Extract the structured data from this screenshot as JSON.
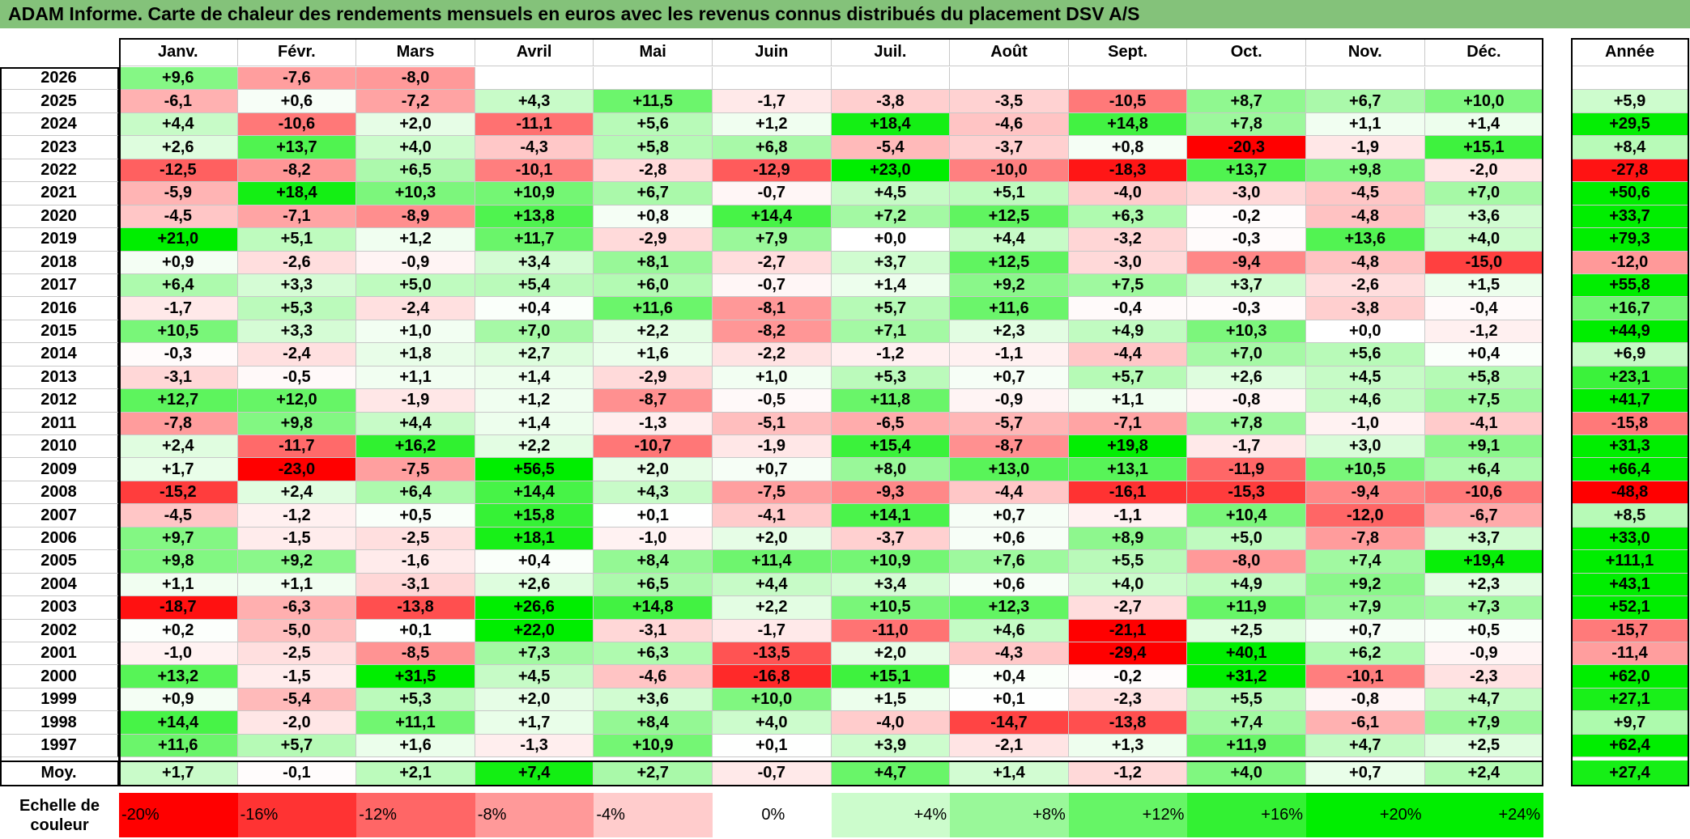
{
  "title": "ADAM Informe. Carte de chaleur des rendements mensuels en euros avec les revenus connus distribués du placement DSV A/S",
  "chart_data": {
    "type": "heatmap",
    "title": "ADAM Informe. Carte de chaleur des rendements mensuels en euros avec les revenus connus distribués du placement DSV A/S",
    "columns": [
      "Janv.",
      "Févr.",
      "Mars",
      "Avril",
      "Mai",
      "Juin",
      "Juil.",
      "Août",
      "Sept.",
      "Oct.",
      "Nov.",
      "Déc."
    ],
    "annual_header": "Année",
    "rows": [
      {
        "year": "2026",
        "values": [
          "+9,6",
          "-7,6",
          "-8,0",
          "",
          "",
          "",
          "",
          "",
          "",
          "",
          "",
          ""
        ],
        "annual": ""
      },
      {
        "year": "2025",
        "values": [
          "-6,1",
          "+0,6",
          "-7,2",
          "+4,3",
          "+11,5",
          "-1,7",
          "-3,8",
          "-3,5",
          "-10,5",
          "+8,7",
          "+6,7",
          "+10,0"
        ],
        "annual": "+5,9"
      },
      {
        "year": "2024",
        "values": [
          "+4,4",
          "-10,6",
          "+2,0",
          "-11,1",
          "+5,6",
          "+1,2",
          "+18,4",
          "-4,6",
          "+14,8",
          "+7,8",
          "+1,1",
          "+1,4"
        ],
        "annual": "+29,5"
      },
      {
        "year": "2023",
        "values": [
          "+2,6",
          "+13,7",
          "+4,0",
          "-4,3",
          "+5,8",
          "+6,8",
          "-5,4",
          "-3,7",
          "+0,8",
          "-20,3",
          "-1,9",
          "+15,1"
        ],
        "annual": "+8,4"
      },
      {
        "year": "2022",
        "values": [
          "-12,5",
          "-8,2",
          "+6,5",
          "-10,1",
          "-2,8",
          "-12,9",
          "+23,0",
          "-10,0",
          "-18,3",
          "+13,7",
          "+9,8",
          "-2,0"
        ],
        "annual": "-27,8"
      },
      {
        "year": "2021",
        "values": [
          "-5,9",
          "+18,4",
          "+10,3",
          "+10,9",
          "+6,7",
          "-0,7",
          "+4,5",
          "+5,1",
          "-4,0",
          "-3,0",
          "-4,5",
          "+7,0"
        ],
        "annual": "+50,6"
      },
      {
        "year": "2020",
        "values": [
          "-4,5",
          "-7,1",
          "-8,9",
          "+13,8",
          "+0,8",
          "+14,4",
          "+7,2",
          "+12,5",
          "+6,3",
          "-0,2",
          "-4,8",
          "+3,6"
        ],
        "annual": "+33,7"
      },
      {
        "year": "2019",
        "values": [
          "+21,0",
          "+5,1",
          "+1,2",
          "+11,7",
          "-2,9",
          "+7,9",
          "+0,0",
          "+4,4",
          "-3,2",
          "-0,3",
          "+13,6",
          "+4,0"
        ],
        "annual": "+79,3"
      },
      {
        "year": "2018",
        "values": [
          "+0,9",
          "-2,6",
          "-0,9",
          "+3,4",
          "+8,1",
          "-2,7",
          "+3,7",
          "+12,5",
          "-3,0",
          "-9,4",
          "-4,8",
          "-15,0"
        ],
        "annual": "-12,0"
      },
      {
        "year": "2017",
        "values": [
          "+6,4",
          "+3,3",
          "+5,0",
          "+5,4",
          "+6,0",
          "-0,7",
          "+1,4",
          "+9,2",
          "+7,5",
          "+3,7",
          "-2,6",
          "+1,5"
        ],
        "annual": "+55,8"
      },
      {
        "year": "2016",
        "values": [
          "-1,7",
          "+5,3",
          "-2,4",
          "+0,4",
          "+11,6",
          "-8,1",
          "+5,7",
          "+11,6",
          "-0,4",
          "-0,3",
          "-3,8",
          "-0,4"
        ],
        "annual": "+16,7"
      },
      {
        "year": "2015",
        "values": [
          "+10,5",
          "+3,3",
          "+1,0",
          "+7,0",
          "+2,2",
          "-8,2",
          "+7,1",
          "+2,3",
          "+4,9",
          "+10,3",
          "+0,0",
          "-1,2"
        ],
        "annual": "+44,9"
      },
      {
        "year": "2014",
        "values": [
          "-0,3",
          "-2,4",
          "+1,8",
          "+2,7",
          "+1,6",
          "-2,2",
          "-1,2",
          "-1,1",
          "-4,4",
          "+7,0",
          "+5,6",
          "+0,4"
        ],
        "annual": "+6,9"
      },
      {
        "year": "2013",
        "values": [
          "-3,1",
          "-0,5",
          "+1,1",
          "+1,4",
          "-2,9",
          "+1,0",
          "+5,3",
          "+0,7",
          "+5,7",
          "+2,6",
          "+4,5",
          "+5,8"
        ],
        "annual": "+23,1"
      },
      {
        "year": "2012",
        "values": [
          "+12,7",
          "+12,0",
          "-1,9",
          "+1,2",
          "-8,7",
          "-0,5",
          "+11,8",
          "-0,9",
          "+1,1",
          "-0,8",
          "+4,6",
          "+7,5"
        ],
        "annual": "+41,7"
      },
      {
        "year": "2011",
        "values": [
          "-7,8",
          "+9,8",
          "+4,4",
          "+1,4",
          "-1,3",
          "-5,1",
          "-6,5",
          "-5,7",
          "-7,1",
          "+7,8",
          "-1,0",
          "-4,1"
        ],
        "annual": "-15,8"
      },
      {
        "year": "2010",
        "values": [
          "+2,4",
          "-11,7",
          "+16,2",
          "+2,2",
          "-10,7",
          "-1,9",
          "+15,4",
          "-8,7",
          "+19,8",
          "-1,7",
          "+3,0",
          "+9,1"
        ],
        "annual": "+31,3"
      },
      {
        "year": "2009",
        "values": [
          "+1,7",
          "-23,0",
          "-7,5",
          "+56,5",
          "+2,0",
          "+0,7",
          "+8,0",
          "+13,0",
          "+13,1",
          "-11,9",
          "+10,5",
          "+6,4"
        ],
        "annual": "+66,4"
      },
      {
        "year": "2008",
        "values": [
          "-15,2",
          "+2,4",
          "+6,4",
          "+14,4",
          "+4,3",
          "-7,5",
          "-9,3",
          "-4,4",
          "-16,1",
          "-15,3",
          "-9,4",
          "-10,6"
        ],
        "annual": "-48,8"
      },
      {
        "year": "2007",
        "values": [
          "-4,5",
          "-1,2",
          "+0,5",
          "+15,8",
          "+0,1",
          "-4,1",
          "+14,1",
          "+0,7",
          "-1,1",
          "+10,4",
          "-12,0",
          "-6,7"
        ],
        "annual": "+8,5"
      },
      {
        "year": "2006",
        "values": [
          "+9,7",
          "-1,5",
          "-2,5",
          "+18,1",
          "-1,0",
          "+2,0",
          "-3,7",
          "+0,6",
          "+8,9",
          "+5,0",
          "-7,8",
          "+3,7"
        ],
        "annual": "+33,0"
      },
      {
        "year": "2005",
        "values": [
          "+9,8",
          "+9,2",
          "-1,6",
          "+0,4",
          "+8,4",
          "+11,4",
          "+10,9",
          "+7,6",
          "+5,5",
          "-8,0",
          "+7,4",
          "+19,4"
        ],
        "annual": "+111,1"
      },
      {
        "year": "2004",
        "values": [
          "+1,1",
          "+1,1",
          "-3,1",
          "+2,6",
          "+6,5",
          "+4,4",
          "+3,4",
          "+0,6",
          "+4,0",
          "+4,9",
          "+9,2",
          "+2,3"
        ],
        "annual": "+43,1"
      },
      {
        "year": "2003",
        "values": [
          "-18,7",
          "-6,3",
          "-13,8",
          "+26,6",
          "+14,8",
          "+2,2",
          "+10,5",
          "+12,3",
          "-2,7",
          "+11,9",
          "+7,9",
          "+7,3"
        ],
        "annual": "+52,1"
      },
      {
        "year": "2002",
        "values": [
          "+0,2",
          "-5,0",
          "+0,1",
          "+22,0",
          "-3,1",
          "-1,7",
          "-11,0",
          "+4,6",
          "-21,1",
          "+2,5",
          "+0,7",
          "+0,5"
        ],
        "annual": "-15,7"
      },
      {
        "year": "2001",
        "values": [
          "-1,0",
          "-2,5",
          "-8,5",
          "+7,3",
          "+6,3",
          "-13,5",
          "+2,0",
          "-4,3",
          "-29,4",
          "+40,1",
          "+6,2",
          "-0,9"
        ],
        "annual": "-11,4"
      },
      {
        "year": "2000",
        "values": [
          "+13,2",
          "-1,5",
          "+31,5",
          "+4,5",
          "-4,6",
          "-16,8",
          "+15,1",
          "+0,4",
          "-0,2",
          "+31,2",
          "-10,1",
          "-2,3"
        ],
        "annual": "+62,0"
      },
      {
        "year": "1999",
        "values": [
          "+0,9",
          "-5,4",
          "+5,3",
          "+2,0",
          "+3,6",
          "+10,0",
          "+1,5",
          "+0,1",
          "-2,3",
          "+5,5",
          "-0,8",
          "+4,7"
        ],
        "annual": "+27,1"
      },
      {
        "year": "1998",
        "values": [
          "+14,4",
          "-2,0",
          "+11,1",
          "+1,7",
          "+8,4",
          "+4,0",
          "-4,0",
          "-14,7",
          "-13,8",
          "+7,4",
          "-6,1",
          "+7,9"
        ],
        "annual": "+9,7"
      },
      {
        "year": "1997",
        "values": [
          "+11,6",
          "+5,7",
          "+1,6",
          "-1,3",
          "+10,9",
          "+0,1",
          "+3,9",
          "-2,1",
          "+1,3",
          "+11,9",
          "+4,7",
          "+2,5"
        ],
        "annual": "+62,4"
      }
    ],
    "average": {
      "label": "Moy.",
      "values": [
        "+1,7",
        "-0,1",
        "+2,1",
        "+7,4",
        "+2,7",
        "-0,7",
        "+4,7",
        "+1,4",
        "-1,2",
        "+4,0",
        "+0,7",
        "+2,4"
      ],
      "annual": "+27,4"
    },
    "color_scale": {
      "label": "Echelle de couleur",
      "steps": [
        "-20%",
        "-16%",
        "-12%",
        "-8%",
        "-4%",
        "0%",
        "+4%",
        "+8%",
        "+12%",
        "+16%",
        "+20%",
        "+24%"
      ],
      "step_values": [
        -20,
        -16,
        -12,
        -8,
        -4,
        0,
        4,
        8,
        12,
        16,
        20,
        24
      ]
    },
    "colors": {
      "title_bar": "#84c27a",
      "negative_max": "#ff0000",
      "positive_max": "#00ee00",
      "neutral": "#ffffff"
    }
  }
}
